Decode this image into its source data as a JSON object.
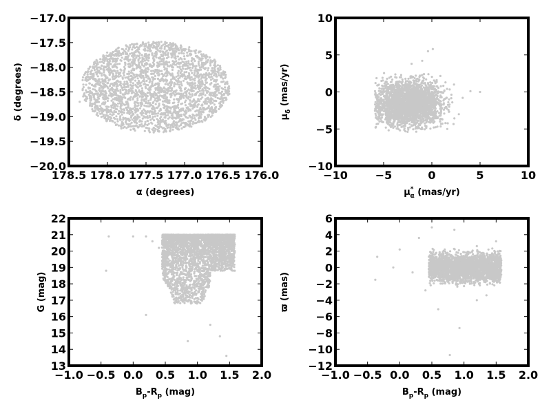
{
  "colors": {
    "points": "#c8c8c8",
    "frame": "#000000",
    "background": "#ffffff"
  },
  "chart_data": [
    {
      "type": "scatter",
      "xlim": [
        178.5,
        176.0
      ],
      "ylim": [
        -20.0,
        -17.0
      ],
      "grid": false,
      "x_inverted": true,
      "xticks": [
        178.5,
        178.0,
        177.5,
        177.0,
        176.5,
        176.0
      ],
      "xtick_labels": [
        "178.5",
        "178.0",
        "177.5",
        "177.0",
        "176.5",
        "176.0"
      ],
      "yticks": [
        -17.0,
        -17.5,
        -18.0,
        -18.5,
        -19.0,
        -19.5,
        -20.0
      ],
      "ytick_labels": [
        "−17.0",
        "−17.5",
        "−18.0",
        "−18.5",
        "−19.0",
        "−19.5",
        "−20.0"
      ],
      "xlabel": "α (degrees)",
      "ylabel": "δ (degrees)",
      "points": [
        [
          178.32,
          -18.44
        ],
        [
          178.1,
          -18.1
        ],
        [
          177.86,
          -17.74
        ],
        [
          177.5,
          -17.52
        ],
        [
          177.1,
          -17.58
        ],
        [
          176.78,
          -17.86
        ],
        [
          176.52,
          -18.2
        ],
        [
          176.42,
          -18.54
        ],
        [
          176.62,
          -18.9
        ],
        [
          176.95,
          -19.18
        ],
        [
          177.4,
          -19.32
        ],
        [
          177.82,
          -19.24
        ],
        [
          178.14,
          -18.96
        ],
        [
          178.36,
          -18.7
        ],
        [
          177.7,
          -18.3
        ],
        [
          177.3,
          -18.5
        ],
        [
          177.0,
          -18.1
        ],
        [
          177.9,
          -18.8
        ],
        [
          177.5,
          -18.9
        ],
        [
          176.9,
          -18.7
        ],
        [
          177.2,
          -17.9
        ],
        [
          177.6,
          -18.0
        ],
        [
          178.0,
          -18.4
        ],
        [
          176.8,
          -18.4
        ],
        [
          177.4,
          -18.6
        ]
      ]
    },
    {
      "type": "scatter",
      "xlim": [
        -10,
        10
      ],
      "ylim": [
        -10,
        10
      ],
      "grid": false,
      "xticks": [
        -10,
        -5,
        0,
        5,
        10
      ],
      "xtick_labels": [
        "−10",
        "−5",
        "0",
        "5",
        "10"
      ],
      "yticks": [
        10,
        5,
        0,
        -5,
        -10
      ],
      "ytick_labels": [
        "10",
        "5",
        "0",
        "−5",
        "−10"
      ],
      "xlabel": "μ",
      "xlabel_sub": "α",
      "xlabel_sup": "*",
      "xlabel_unit": "(mas/yr)",
      "ylabel": "μ",
      "ylabel_sub": "δ",
      "ylabel_unit": "(mas/yr)",
      "points": [
        [
          -5.8,
          -0.4
        ],
        [
          -5.6,
          0.9
        ],
        [
          -5.2,
          -2.2
        ],
        [
          -4.7,
          1.4
        ],
        [
          -4.3,
          -3.1
        ],
        [
          -3.8,
          2.0
        ],
        [
          -3.4,
          -3.8
        ],
        [
          -3.0,
          0.3
        ],
        [
          -2.6,
          -4.2
        ],
        [
          -2.2,
          1.9
        ],
        [
          -1.8,
          -1.4
        ],
        [
          -1.4,
          -4.6
        ],
        [
          -1.0,
          2.3
        ],
        [
          -0.6,
          -2.6
        ],
        [
          -0.2,
          0.6
        ],
        [
          0.2,
          -4.8
        ],
        [
          0.5,
          1.6
        ],
        [
          0.9,
          -3.2
        ],
        [
          1.3,
          0.2
        ],
        [
          1.8,
          -2.0
        ],
        [
          2.3,
          1.0
        ],
        [
          2.8,
          -3.0
        ],
        [
          3.2,
          -0.8
        ],
        [
          4.0,
          0.1
        ],
        [
          5.0,
          0.0
        ],
        [
          -0.4,
          5.5
        ],
        [
          0.1,
          5.8
        ],
        [
          -2.1,
          3.8
        ],
        [
          -1.0,
          4.2
        ],
        [
          1.6,
          -5.0
        ]
      ]
    },
    {
      "type": "scatter",
      "xlim": [
        -1.0,
        2.0
      ],
      "ylim": [
        13,
        22
      ],
      "grid": false,
      "xticks": [
        -1.0,
        -0.5,
        0.0,
        0.5,
        1.0,
        1.5,
        2.0
      ],
      "xtick_labels": [
        "−1.0",
        "−0.5",
        "0.0",
        "0.5",
        "1.0",
        "1.5",
        "2.0"
      ],
      "yticks": [
        13,
        14,
        15,
        16,
        17,
        18,
        19,
        20,
        21,
        22
      ],
      "ytick_labels": [
        "13",
        "14",
        "15",
        "16",
        "17",
        "18",
        "19",
        "20",
        "21",
        "22"
      ],
      "xlabel": "B",
      "xlabel_sub1": "p",
      "xlabel_mid": "-R",
      "xlabel_sub2": "p",
      "xlabel_unit": "(mag)",
      "ylabel": "G (mag)",
      "points": [
        [
          -0.38,
          20.9
        ],
        [
          -0.42,
          18.8
        ],
        [
          0.0,
          20.9
        ],
        [
          0.2,
          20.9
        ],
        [
          0.3,
          20.6
        ],
        [
          0.4,
          20.2
        ],
        [
          0.5,
          20.9
        ],
        [
          0.6,
          20.8
        ],
        [
          0.7,
          20.5
        ],
        [
          0.75,
          19.6
        ],
        [
          0.8,
          18.6
        ],
        [
          0.85,
          17.8
        ],
        [
          0.9,
          16.8
        ],
        [
          0.95,
          20.3
        ],
        [
          1.0,
          19.8
        ],
        [
          1.05,
          17.2
        ],
        [
          1.1,
          20.8
        ],
        [
          1.2,
          20.4
        ],
        [
          1.25,
          18.9
        ],
        [
          1.3,
          19.6
        ],
        [
          1.4,
          20.9
        ],
        [
          1.5,
          20.5
        ],
        [
          1.58,
          20.0
        ],
        [
          1.58,
          18.8
        ],
        [
          0.85,
          14.5
        ],
        [
          1.45,
          13.6
        ],
        [
          0.2,
          16.1
        ],
        [
          1.2,
          15.5
        ],
        [
          1.35,
          14.8
        ],
        [
          0.55,
          19.2
        ]
      ]
    },
    {
      "type": "scatter",
      "xlim": [
        -1.0,
        2.0
      ],
      "ylim": [
        -12,
        6
      ],
      "grid": false,
      "xticks": [
        -1.0,
        -0.5,
        0.0,
        0.5,
        1.0,
        1.5,
        2.0
      ],
      "xtick_labels": [
        "−1.0",
        "−0.5",
        "0.0",
        "0.5",
        "1.0",
        "1.5",
        "2.0"
      ],
      "yticks": [
        6,
        4,
        2,
        0,
        -2,
        -4,
        -6,
        -8,
        -10,
        -12
      ],
      "ytick_labels": [
        "6",
        "4",
        "2",
        "0",
        "−2",
        "−4",
        "−6",
        "−8",
        "−10",
        "−12"
      ],
      "xlabel": "B",
      "xlabel_sub1": "p",
      "xlabel_mid": "-R",
      "xlabel_sub2": "p",
      "xlabel_unit": "(mag)",
      "ylabel": "ϖ (mas)",
      "points": [
        [
          -0.35,
          1.3
        ],
        [
          -0.38,
          -1.5
        ],
        [
          -0.1,
          0.0
        ],
        [
          0.0,
          2.2
        ],
        [
          0.2,
          -0.6
        ],
        [
          0.3,
          3.6
        ],
        [
          0.4,
          -2.8
        ],
        [
          0.5,
          0.4
        ],
        [
          0.6,
          -1.2
        ],
        [
          0.7,
          2.2
        ],
        [
          0.8,
          -0.4
        ],
        [
          0.85,
          4.6
        ],
        [
          0.9,
          1.0
        ],
        [
          1.0,
          -1.8
        ],
        [
          1.1,
          0.3
        ],
        [
          1.2,
          2.6
        ],
        [
          1.3,
          -1.0
        ],
        [
          1.4,
          0.6
        ],
        [
          1.5,
          3.2
        ],
        [
          1.58,
          -0.3
        ],
        [
          0.78,
          -10.7
        ],
        [
          0.93,
          -7.4
        ],
        [
          0.6,
          -5.1
        ],
        [
          1.2,
          -4.0
        ],
        [
          0.5,
          4.9
        ],
        [
          1.35,
          -3.4
        ]
      ]
    }
  ]
}
